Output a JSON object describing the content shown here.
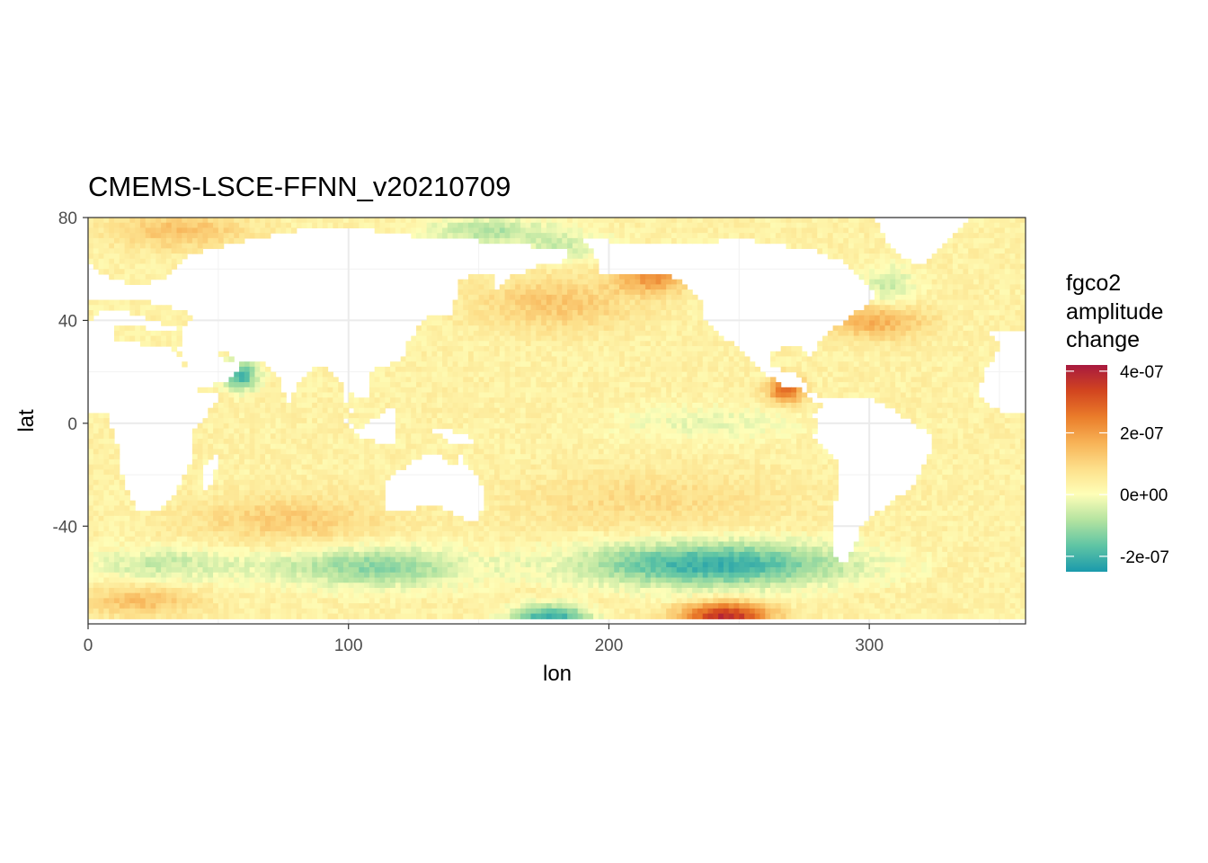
{
  "chart_data": {
    "type": "heatmap",
    "title": "CMEMS-LSCE-FFNN_v20210709",
    "xlabel": "lon",
    "ylabel": "lat",
    "xlim": [
      0,
      360
    ],
    "ylim": [
      -78,
      80
    ],
    "x_ticks": [
      0,
      100,
      200,
      300
    ],
    "y_ticks": [
      -40,
      0,
      40,
      80
    ],
    "grid": true,
    "legend": {
      "title_lines": [
        "fgco2",
        "amplitude",
        "change"
      ],
      "position": "right",
      "range": [
        -2.5e-07,
        4.2e-07
      ],
      "ticks": [
        {
          "value": 4e-07,
          "label": "4e-07"
        },
        {
          "value": 2e-07,
          "label": "2e-07"
        },
        {
          "value": 0,
          "label": "0e+00"
        },
        {
          "value": -2e-07,
          "label": "-2e-07"
        }
      ],
      "colors": [
        "#1a9aac",
        "#5ec4a4",
        "#b3e3a0",
        "#fefeb8",
        "#fde08b",
        "#f7b256",
        "#ea7c2a",
        "#d2451f",
        "#a8193f"
      ]
    },
    "land_mask": [
      {
        "name": "North America",
        "points": [
          [
            190,
            72
          ],
          [
            200,
            71
          ],
          [
            215,
            69
          ],
          [
            235,
            70
          ],
          [
            250,
            72
          ],
          [
            268,
            69
          ],
          [
            280,
            67
          ],
          [
            292,
            62
          ],
          [
            298,
            56
          ],
          [
            303,
            49
          ],
          [
            296,
            44
          ],
          [
            292,
            41
          ],
          [
            284,
            35
          ],
          [
            280,
            30
          ],
          [
            278,
            25
          ],
          [
            275,
            29
          ],
          [
            270,
            30
          ],
          [
            262,
            28
          ],
          [
            263,
            22
          ],
          [
            266,
            21
          ],
          [
            271,
            21
          ],
          [
            273,
            19
          ],
          [
            277,
            13
          ],
          [
            284,
            9
          ],
          [
            282,
            8
          ],
          [
            278,
            8
          ],
          [
            273,
            14
          ],
          [
            266,
            15
          ],
          [
            262,
            18
          ],
          [
            256,
            24
          ],
          [
            248,
            31
          ],
          [
            243,
            34
          ],
          [
            236,
            40
          ],
          [
            235,
            48
          ],
          [
            228,
            55
          ],
          [
            220,
            59
          ],
          [
            206,
            57
          ],
          [
            197,
            58
          ],
          [
            195,
            64
          ]
        ]
      },
      {
        "name": "Greenland",
        "points": [
          [
            302,
            80
          ],
          [
            340,
            80
          ],
          [
            332,
            72
          ],
          [
            320,
            62
          ],
          [
            312,
            64
          ],
          [
            304,
            75
          ]
        ]
      },
      {
        "name": "South America",
        "points": [
          [
            282,
            8
          ],
          [
            289,
            11
          ],
          [
            300,
            10
          ],
          [
            310,
            5
          ],
          [
            320,
            -2
          ],
          [
            325,
            -6
          ],
          [
            322,
            -14
          ],
          [
            318,
            -23
          ],
          [
            312,
            -28
          ],
          [
            303,
            -35
          ],
          [
            297,
            -40
          ],
          [
            294,
            -48
          ],
          [
            292,
            -54
          ],
          [
            288,
            -55
          ],
          [
            286,
            -50
          ],
          [
            285,
            -40
          ],
          [
            287,
            -30
          ],
          [
            289,
            -18
          ],
          [
            284,
            -10
          ],
          [
            279,
            -5
          ],
          [
            281,
            0
          ],
          [
            278,
            2
          ]
        ]
      },
      {
        "name": "Eurasia",
        "points": [
          [
            0,
            80
          ],
          [
            0,
            63
          ],
          [
            5,
            58
          ],
          [
            10,
            56
          ],
          [
            20,
            54
          ],
          [
            30,
            57
          ],
          [
            40,
            66
          ],
          [
            55,
            70
          ],
          [
            70,
            73
          ],
          [
            90,
            77
          ],
          [
            110,
            75
          ],
          [
            130,
            72
          ],
          [
            150,
            71
          ],
          [
            170,
            69
          ],
          [
            185,
            67
          ],
          [
            183,
            63
          ],
          [
            175,
            62
          ],
          [
            163,
            57
          ],
          [
            157,
            52
          ],
          [
            157,
            59
          ],
          [
            150,
            59
          ],
          [
            142,
            55
          ],
          [
            141,
            47
          ],
          [
            140,
            43
          ],
          [
            135,
            43
          ],
          [
            130,
            42
          ],
          [
            127,
            38
          ],
          [
            126,
            35
          ],
          [
            122,
            32
          ],
          [
            121,
            26
          ],
          [
            114,
            22
          ],
          [
            108,
            20
          ],
          [
            107,
            16
          ],
          [
            109,
            12
          ],
          [
            105,
            9
          ],
          [
            100,
            13
          ],
          [
            101,
            6
          ],
          [
            103,
            1
          ],
          [
            99,
            8
          ],
          [
            98,
            16
          ],
          [
            93,
            21
          ],
          [
            88,
            22
          ],
          [
            80,
            15
          ],
          [
            77,
            8
          ],
          [
            72,
            20
          ],
          [
            67,
            25
          ],
          [
            57,
            25
          ],
          [
            56,
            26
          ],
          [
            50,
            29
          ],
          [
            48,
            29
          ],
          [
            53,
            24
          ],
          [
            56,
            24
          ],
          [
            59,
            22
          ],
          [
            52,
            16
          ],
          [
            43,
            13
          ],
          [
            35,
            29
          ],
          [
            36,
            36
          ],
          [
            26,
            40
          ],
          [
            14,
            44
          ],
          [
            10,
            44
          ],
          [
            5,
            43
          ],
          [
            0,
            39
          ],
          [
            0,
            36
          ],
          [
            10,
            37
          ],
          [
            20,
            38
          ],
          [
            25,
            36
          ],
          [
            34,
            35
          ],
          [
            42,
            42
          ],
          [
            28,
            46
          ],
          [
            20,
            48
          ],
          [
            10,
            48
          ],
          [
            0,
            49
          ]
        ]
      },
      {
        "name": "Africa",
        "points": [
          [
            0,
            36
          ],
          [
            10,
            37
          ],
          [
            11,
            33
          ],
          [
            20,
            31
          ],
          [
            31,
            31
          ],
          [
            34,
            28
          ],
          [
            43,
            13
          ],
          [
            51,
            12
          ],
          [
            47,
            5
          ],
          [
            40,
            -3
          ],
          [
            40,
            -15
          ],
          [
            35,
            -24
          ],
          [
            33,
            -28
          ],
          [
            27,
            -34
          ],
          [
            20,
            -35
          ],
          [
            17,
            -30
          ],
          [
            13,
            -20
          ],
          [
            12,
            -10
          ],
          [
            9,
            -2
          ],
          [
            9,
            4
          ],
          [
            0,
            5
          ]
        ]
      },
      {
        "name": "Atlantic Europe-Africa",
        "points": [
          [
            345,
            36
          ],
          [
            360,
            36
          ],
          [
            360,
            5
          ],
          [
            350,
            5
          ],
          [
            342,
            10
          ],
          [
            343,
            15
          ],
          [
            345,
            21
          ],
          [
            350,
            30
          ]
        ]
      },
      {
        "name": "Madagascar",
        "points": [
          [
            44,
            -25
          ],
          [
            47,
            -25
          ],
          [
            50,
            -16
          ],
          [
            49,
            -12
          ],
          [
            44,
            -17
          ]
        ]
      },
      {
        "name": "Australia",
        "points": [
          [
            114,
            -22
          ],
          [
            114,
            -34
          ],
          [
            118,
            -35
          ],
          [
            124,
            -34
          ],
          [
            131,
            -31
          ],
          [
            138,
            -34
          ],
          [
            145,
            -38
          ],
          [
            150,
            -37
          ],
          [
            153,
            -28
          ],
          [
            149,
            -20
          ],
          [
            145,
            -15
          ],
          [
            142,
            -11
          ],
          [
            141,
            -17
          ],
          [
            136,
            -12
          ],
          [
            131,
            -11
          ],
          [
            123,
            -16
          ]
        ]
      },
      {
        "name": "Borneo-Sumatra-Java",
        "points": [
          [
            95,
            5
          ],
          [
            105,
            -6
          ],
          [
            115,
            -8
          ],
          [
            118,
            -8
          ],
          [
            119,
            1
          ],
          [
            117,
            7
          ],
          [
            110,
            2
          ],
          [
            104,
            -2
          ],
          [
            98,
            2
          ]
        ]
      },
      {
        "name": "New Guinea",
        "points": [
          [
            131,
            -1
          ],
          [
            141,
            -3
          ],
          [
            150,
            -6
          ],
          [
            147,
            -9
          ],
          [
            140,
            -8
          ],
          [
            134,
            -4
          ]
        ]
      },
      {
        "name": "Antarctica edge",
        "points": [
          [
            0,
            -75
          ],
          [
            360,
            -75
          ],
          [
            360,
            -80
          ],
          [
            0,
            -80
          ]
        ]
      }
    ],
    "anomaly_regions": [
      {
        "name": "Southern Ocean central Pacific band",
        "lon": [
          185,
          295
        ],
        "lat": [
          -62,
          -48
        ],
        "value": -2.1e-07
      },
      {
        "name": "Southern Ocean Indian sector band",
        "lon": [
          70,
          150
        ],
        "lat": [
          -62,
          -50
        ],
        "value": -1.2e-07
      },
      {
        "name": "Southern Ocean Atlantic sector",
        "lon": [
          0,
          60
        ],
        "lat": [
          -60,
          -50
        ],
        "value": -6e-08
      },
      {
        "name": "Arabian Sea coast",
        "lon": [
          55,
          62
        ],
        "lat": [
          15,
          22
        ],
        "value": -2e-07
      },
      {
        "name": "North Pacific subarctic",
        "lon": [
          150,
          210
        ],
        "lat": [
          38,
          55
        ],
        "value": 1.3e-07
      },
      {
        "name": "Gulf of Alaska coast",
        "lon": [
          205,
          230
        ],
        "lat": [
          53,
          62
        ],
        "value": 2.2e-07
      },
      {
        "name": "North Atlantic Gulf Stream",
        "lon": [
          285,
          320
        ],
        "lat": [
          35,
          45
        ],
        "value": 1.8e-07
      },
      {
        "name": "Labrador Sea",
        "lon": [
          300,
          315
        ],
        "lat": [
          45,
          60
        ],
        "value": -6e-08
      },
      {
        "name": "Bering/Arctic strip",
        "lon": [
          165,
          200
        ],
        "lat": [
          65,
          73
        ],
        "value": -5e-08
      },
      {
        "name": "Southern subtropical Indian",
        "lon": [
          40,
          115
        ],
        "lat": [
          -45,
          -30
        ],
        "value": 1.2e-07
      },
      {
        "name": "South Pacific subtropical",
        "lon": [
          160,
          270
        ],
        "lat": [
          -40,
          -20
        ],
        "value": 9e-08
      },
      {
        "name": "Equatorial Pacific cold tongue",
        "lon": [
          200,
          275
        ],
        "lat": [
          -5,
          5
        ],
        "value": -2e-08
      },
      {
        "name": "Central American coast",
        "lon": [
          264,
          272
        ],
        "lat": [
          10,
          16
        ],
        "value": 2.8e-07
      },
      {
        "name": "Far Southern Ocean west",
        "lon": [
          0,
          40
        ],
        "lat": [
          -73,
          -65
        ],
        "value": 1.4e-07
      },
      {
        "name": "Ross Sea",
        "lon": [
          165,
          190
        ],
        "lat": [
          -78,
          -73
        ],
        "value": -2.2e-07
      },
      {
        "name": "Antarctic coast Pacific",
        "lon": [
          230,
          260
        ],
        "lat": [
          -78,
          -72
        ],
        "value": 3.8e-07
      },
      {
        "name": "Barents/Norwegian Sea",
        "lon": [
          10,
          60
        ],
        "lat": [
          70,
          80
        ],
        "value": 1.4e-07
      },
      {
        "name": "Arctic Siberian shelf",
        "lon": [
          130,
          175
        ],
        "lat": [
          72,
          78
        ],
        "value": -8e-08
      }
    ],
    "base_value": 3.5e-08
  }
}
